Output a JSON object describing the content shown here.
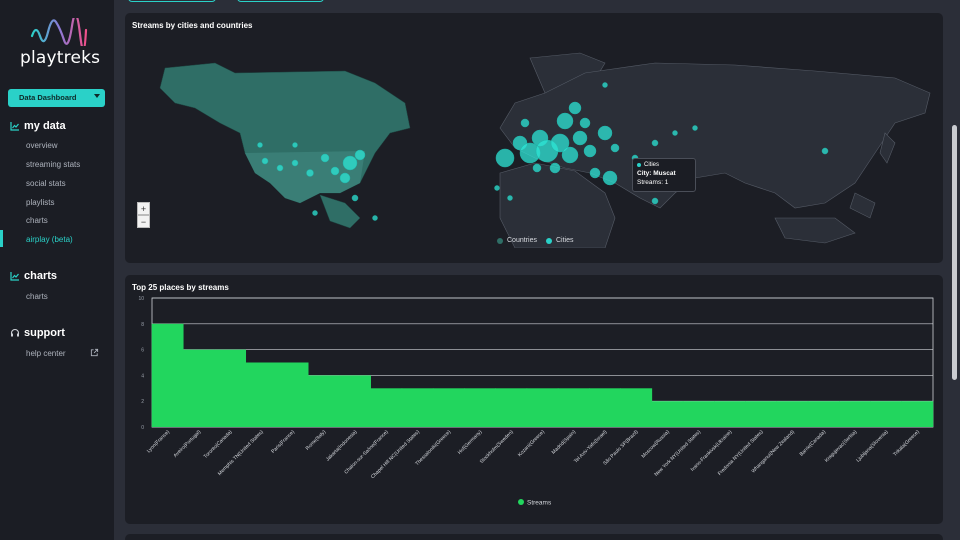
{
  "brand": {
    "name": "playtreks"
  },
  "sidebar": {
    "dropdown": "Data Dashboard",
    "sections": [
      {
        "title": "my data",
        "icon": "line-chart-icon"
      },
      {
        "title": "charts",
        "icon": "line-chart-icon"
      },
      {
        "title": "support",
        "icon": "headset-icon"
      }
    ],
    "mydata_items": [
      "overview",
      "streaming stats",
      "social stats",
      "playlists",
      "charts",
      "airplay (beta)"
    ],
    "active_item": "airplay (beta)",
    "charts_items": [
      "charts"
    ],
    "support_items": [
      "help center"
    ]
  },
  "map_panel": {
    "title": "Streams by cities and countries",
    "zoom_in": "+",
    "zoom_out": "−",
    "legend": [
      "Countries",
      "Cities"
    ],
    "tooltip": {
      "series": "Cities",
      "city": "City: Muscat",
      "streams": "Streams: 1"
    }
  },
  "colors": {
    "accent": "#2ad1c8",
    "bar": "#22d65e",
    "panel": "#1c1e25",
    "background": "#2b2e38"
  },
  "chart_data": {
    "type": "bar",
    "title": "Top 25 places by streams",
    "categories": [
      "Lyon(France)",
      "Aveiro(Portugal)",
      "Toronto(Canada)",
      "Memphis TN(United States)",
      "Paris(France)",
      "Rome(Italy)",
      "Jakarta(Indonesia)",
      "Chalon-sur-Saône(France)",
      "Chapel Hill NC(United States)",
      "Thessaloniki(Greece)",
      "Hof(Germany)",
      "Stockholm(Sweden)",
      "Kozani(Greece)",
      "Madrid(Spain)",
      "Tel Aviv-Yafo(Israel)",
      "São Paulo SP(Brazil)",
      "Moscow(Russia)",
      "New York NY(United States)",
      "Ivano-Frankivsk(Ukraine)",
      "Fredonia NY(United States)",
      "Whanganui(New Zealand)",
      "Barrie(Canada)",
      "Kragujevac(Serbia)",
      "Ljubljana(Slovenia)",
      "Trikala(Greece)"
    ],
    "series": [
      {
        "name": "Streams",
        "values": [
          8,
          6,
          6,
          5,
          5,
          4,
          4,
          3,
          3,
          3,
          3,
          3,
          3,
          3,
          3,
          3,
          2,
          2,
          2,
          2,
          2,
          2,
          2,
          2,
          2
        ]
      }
    ],
    "yticks": [
      "10",
      "8",
      "6",
      "4",
      "2",
      "0"
    ],
    "ylim": [
      0,
      10
    ],
    "legend": "bottom-center",
    "grid": true
  }
}
